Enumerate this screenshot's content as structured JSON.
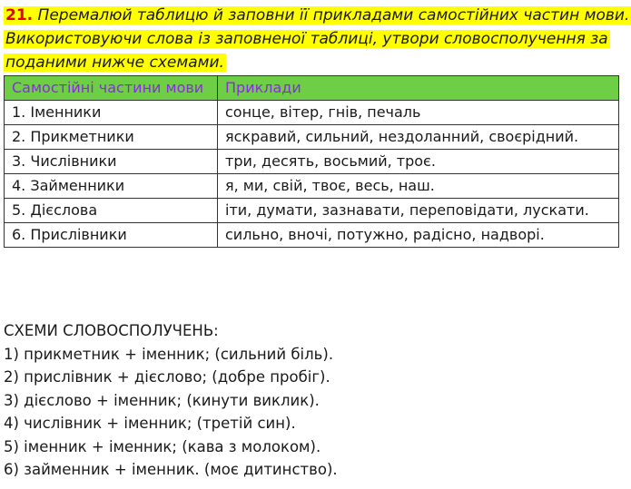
{
  "task": {
    "number": "21.",
    "text": "Перемалюй таблицю й заповни її прикладами самостійних частин мови. Використовуючи слова із заповненої таблиці, утвори словосполучення за поданими нижче схемами."
  },
  "table": {
    "headers": [
      "Самостійні частини мови",
      "Приклади"
    ],
    "rows": [
      [
        "1. Іменники",
        "сонце, вітер, гнів, печаль"
      ],
      [
        "2. Прикметники",
        "яскравий, сильний, нездоланний, своєрідний."
      ],
      [
        "3. Числівники",
        "три, десять, восьмий, троє."
      ],
      [
        "4. Займенники",
        "я, ми, свій, твоє, весь, наш."
      ],
      [
        "5. Дієслова",
        "іти, думати, зазнавати, переповідати, лускати."
      ],
      [
        "6. Прислівники",
        "сильно, вночі, потужно, радісно, надворі."
      ]
    ],
    "header_color": "#6ecf46",
    "header_text_color": "#8a2be2"
  },
  "schemes": {
    "title": "СХЕМИ СЛОВОСПОЛУЧЕНЬ:",
    "items": [
      "1) прикметник + іменник; (сильний біль).",
      "2) прислівник + дієслово; (добре пробіг).",
      "3) дієслово + іменник; (кинути виклик).",
      "4) числівник + іменник; (третій син).",
      "5) іменник + іменник; (кава з молоком).",
      "6) займенник + іменник. (моє дитинство)."
    ]
  }
}
